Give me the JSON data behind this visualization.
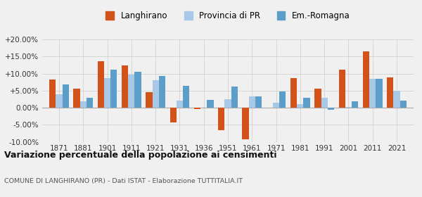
{
  "years": [
    1871,
    1881,
    1901,
    1911,
    1921,
    1931,
    1936,
    1951,
    1961,
    1971,
    1981,
    1991,
    2001,
    2011,
    2021
  ],
  "langhirano": [
    8.3,
    5.6,
    13.7,
    12.4,
    4.6,
    -4.3,
    -0.5,
    -6.5,
    -9.2,
    0.1,
    8.7,
    5.5,
    11.2,
    16.5,
    8.9
  ],
  "provincia_pr": [
    4.0,
    1.8,
    8.7,
    9.6,
    8.0,
    2.0,
    0.0,
    2.5,
    3.4,
    1.5,
    1.1,
    3.0,
    0.2,
    8.5,
    4.9
  ],
  "em_romagna": [
    6.9,
    2.9,
    11.2,
    10.5,
    9.3,
    6.3,
    2.3,
    6.1,
    3.3,
    4.8,
    3.0,
    -0.6,
    1.8,
    8.5,
    2.0
  ],
  "color_langhirano": "#D2521A",
  "color_provincia": "#A8C8E8",
  "color_em_romagna": "#5B9EC9",
  "title": "Variazione percentuale della popolazione ai censimenti",
  "subtitle": "COMUNE DI LANGHIRANO (PR) - Dati ISTAT - Elaborazione TUTTITALIA.IT",
  "ylim_min": -10.0,
  "ylim_max": 20.0,
  "yticks": [
    -10.0,
    -5.0,
    0.0,
    5.0,
    10.0,
    15.0,
    20.0
  ],
  "legend_labels": [
    "Langhirano",
    "Provincia di PR",
    "Em.-Romagna"
  ],
  "background_color": "#f0f0f0"
}
